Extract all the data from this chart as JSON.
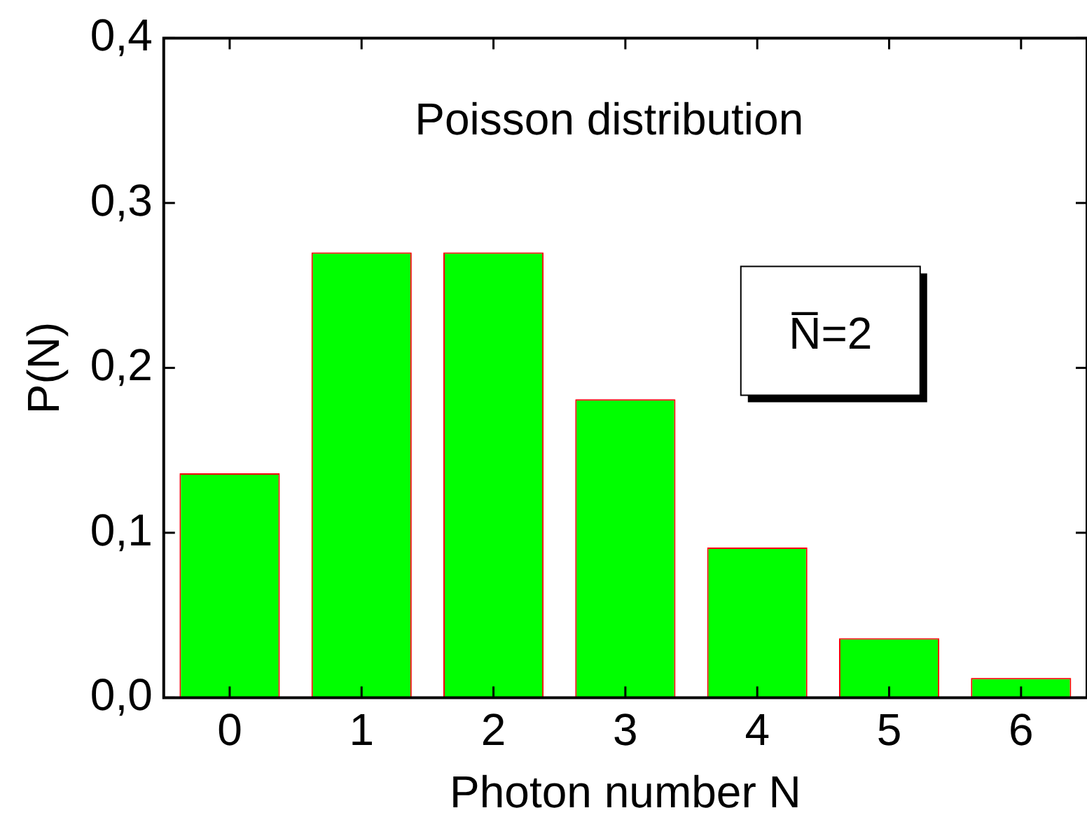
{
  "chart_data": {
    "type": "bar",
    "xlabel": "Photon number N",
    "ylabel": "P(N)",
    "categories": [
      "0",
      "1",
      "2",
      "3",
      "4",
      "5",
      "6"
    ],
    "values": [
      0.136,
      0.27,
      0.27,
      0.181,
      0.091,
      0.036,
      0.012
    ],
    "color": "#00ff00",
    "ylim": [
      0,
      0.4
    ],
    "yticks": [
      {
        "value": 0,
        "label": "0,0"
      },
      {
        "value": 0.1,
        "label": "0,1"
      },
      {
        "value": 0.2,
        "label": "0,2"
      },
      {
        "value": 0.3,
        "label": "0,3"
      },
      {
        "value": 0.4,
        "label": "0,4"
      }
    ],
    "annotations": [
      "Poisson distribution",
      "N̅=2"
    ],
    "grid": false,
    "legend": false
  }
}
